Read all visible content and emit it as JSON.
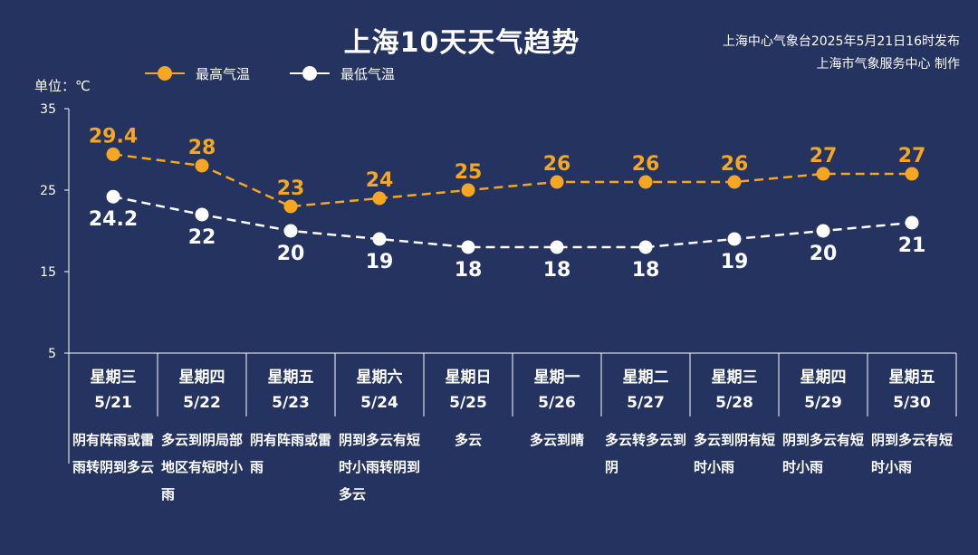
{
  "header": {
    "title": "上海10天天气趋势",
    "credit_line1": "上海中心气象台2025年5月21日16时发布",
    "credit_line2": "上海市气象服务中心 制作",
    "unit_label": "单位：℃"
  },
  "colors": {
    "background": "#24335f",
    "high": "#f5a623",
    "low": "#ffffff",
    "axis": "#ffffff"
  },
  "chart_data": {
    "type": "line",
    "title": "上海10天天气趋势",
    "ylabel": "单位：℃",
    "ylim": [
      5,
      35
    ],
    "yticks": [
      5,
      15,
      25,
      35
    ],
    "grid": false,
    "legend_position": "top-left",
    "categories": [
      "5/21",
      "5/22",
      "5/23",
      "5/24",
      "5/25",
      "5/26",
      "5/27",
      "5/28",
      "5/29",
      "5/30"
    ],
    "series": [
      {
        "name": "最高气温",
        "color": "#f5a623",
        "values": [
          29.4,
          28,
          23,
          24,
          25,
          26,
          26,
          26,
          27,
          27
        ],
        "labels": [
          "29.4",
          "28",
          "23",
          "24",
          "25",
          "26",
          "26",
          "26",
          "27",
          "27"
        ]
      },
      {
        "name": "最低气温",
        "color": "#ffffff",
        "values": [
          24.2,
          22,
          20,
          19,
          18,
          18,
          18,
          19,
          20,
          21
        ],
        "labels": [
          "24.2",
          "22",
          "20",
          "19",
          "18",
          "18",
          "18",
          "19",
          "20",
          "21"
        ]
      }
    ]
  },
  "days": [
    {
      "weekday": "星期三",
      "date": "5/21",
      "desc": "阴有阵雨或雷雨转阴到多云"
    },
    {
      "weekday": "星期四",
      "date": "5/22",
      "desc": "多云到阴局部地区有短时小雨"
    },
    {
      "weekday": "星期五",
      "date": "5/23",
      "desc": "阴有阵雨或雷雨"
    },
    {
      "weekday": "星期六",
      "date": "5/24",
      "desc": "阴到多云有短时小雨转阴到多云"
    },
    {
      "weekday": "星期日",
      "date": "5/25",
      "desc": "多云"
    },
    {
      "weekday": "星期一",
      "date": "5/26",
      "desc": "多云到晴"
    },
    {
      "weekday": "星期二",
      "date": "5/27",
      "desc": "多云转多云到阴"
    },
    {
      "weekday": "星期三",
      "date": "5/28",
      "desc": "多云到阴有短时小雨"
    },
    {
      "weekday": "星期四",
      "date": "5/29",
      "desc": "阴到多云有短时小雨"
    },
    {
      "weekday": "星期五",
      "date": "5/30",
      "desc": "阴到多云有短时小雨"
    }
  ]
}
